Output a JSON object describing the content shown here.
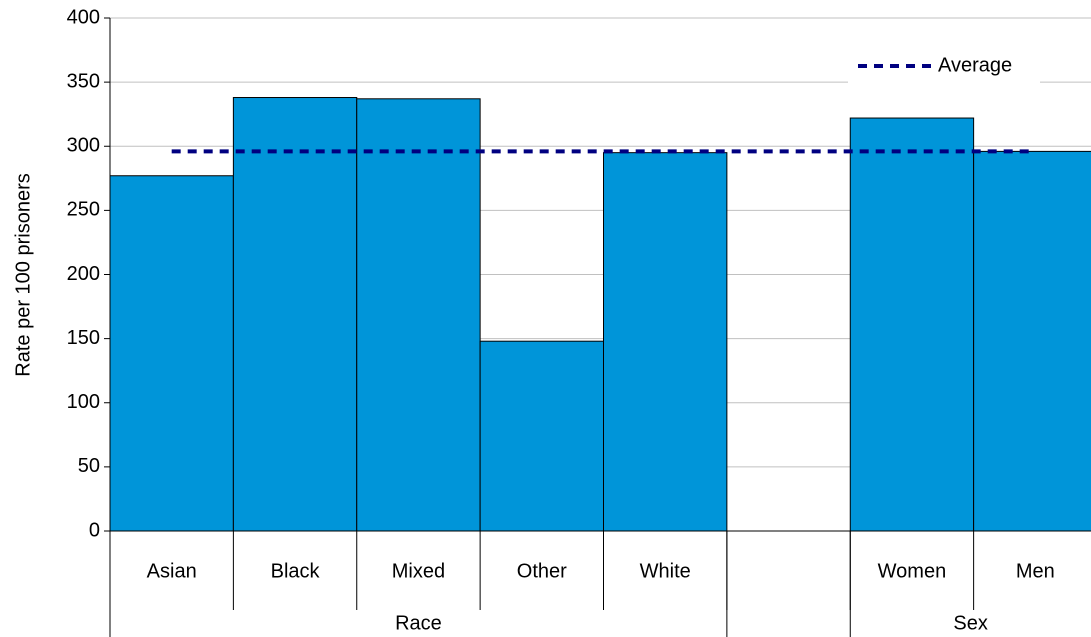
{
  "chart_data": {
    "type": "bar",
    "y_label": "Rate per 100 prisoners",
    "groups": [
      {
        "name": "Race",
        "categories": [
          "Asian",
          "Black",
          "Mixed",
          "Other",
          "White"
        ],
        "values": [
          277,
          338,
          337,
          148,
          295
        ]
      },
      {
        "name": null,
        "categories": [
          null
        ],
        "values": [
          null
        ]
      },
      {
        "name": "Sex",
        "categories": [
          "Women",
          "Men"
        ],
        "values": [
          322,
          296
        ]
      }
    ],
    "color": "#0095d9",
    "reference_line": {
      "name": "Average",
      "value": 296,
      "color": "#000080"
    },
    "legend": "top-right",
    "ylim": [
      0,
      400
    ],
    "yticks": [
      0,
      50,
      100,
      150,
      200,
      250,
      300,
      350,
      400
    ],
    "grid": true
  }
}
